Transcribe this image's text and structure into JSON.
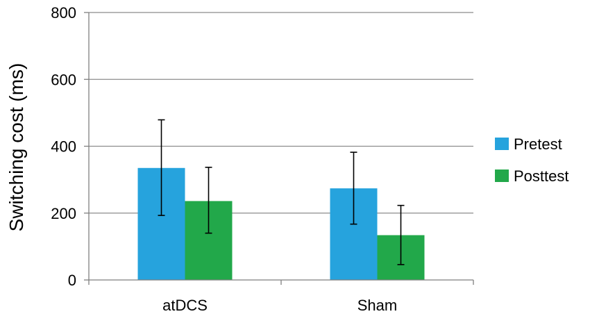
{
  "chart_data": {
    "type": "bar",
    "title": "",
    "xlabel": "",
    "ylabel": "Switching cost (ms)",
    "ylim": [
      0,
      800
    ],
    "yticks": [
      0,
      200,
      400,
      600,
      800
    ],
    "grid": true,
    "legend_position": "right",
    "categories": [
      "atDCS",
      "Sham"
    ],
    "series": [
      {
        "name": "Pretest",
        "color": "#26a3dd",
        "values": [
          335,
          274
        ],
        "error_low": [
          193,
          167
        ],
        "error_high": [
          479,
          382
        ]
      },
      {
        "name": "Posttest",
        "color": "#22a84a",
        "values": [
          236,
          134
        ],
        "error_low": [
          140,
          46
        ],
        "error_high": [
          337,
          223
        ]
      }
    ]
  }
}
